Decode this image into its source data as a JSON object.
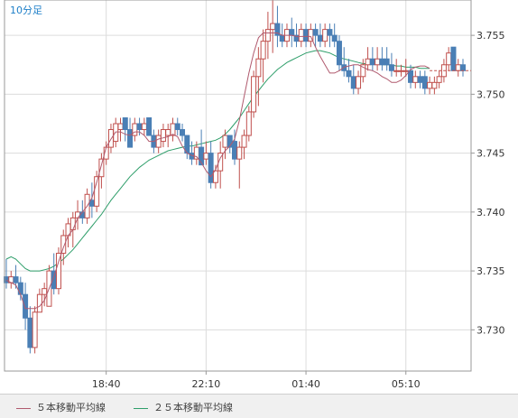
{
  "timeframe": "10分足",
  "legend": [
    {
      "label": "５本移動平均線",
      "color": "#b05a6e"
    },
    {
      "label": "２５本移動平均線",
      "color": "#2e9e6a"
    }
  ],
  "colors": {
    "bull": "#c0504d",
    "bear": "#4a7fb5",
    "grid": "#dcdcdc",
    "axis": "#999999",
    "title": "#1e7fc8",
    "background": "#ffffff"
  },
  "chart_data": {
    "type": "candlestick",
    "title": "10分足",
    "y_range": [
      3.7265,
      3.758
    ],
    "y_ticks": [
      "3.730",
      "3.735",
      "3.740",
      "3.745",
      "3.750",
      "3.755"
    ],
    "x_ticks": [
      "18:40",
      "22:10",
      "01:40",
      "05:10"
    ],
    "grid": true,
    "legend_placement": "bottom",
    "candles": [
      [
        3.7345,
        3.736,
        3.7335,
        3.734
      ],
      [
        3.734,
        3.735,
        3.7335,
        3.7345
      ],
      [
        3.7345,
        3.7355,
        3.7335,
        3.734
      ],
      [
        3.734,
        3.7345,
        3.7325,
        3.733
      ],
      [
        3.733,
        3.734,
        3.73,
        3.731
      ],
      [
        3.731,
        3.732,
        3.728,
        3.7285
      ],
      [
        3.7285,
        3.732,
        3.728,
        3.7315
      ],
      [
        3.7315,
        3.7335,
        3.7315,
        3.733
      ],
      [
        3.733,
        3.734,
        3.732,
        3.7335
      ],
      [
        3.732,
        3.7355,
        3.732,
        3.735
      ],
      [
        3.735,
        3.7365,
        3.733,
        3.7335
      ],
      [
        3.7335,
        3.737,
        3.733,
        3.7365
      ],
      [
        3.7365,
        3.7385,
        3.7355,
        3.738
      ],
      [
        3.738,
        3.7395,
        3.737,
        3.739
      ],
      [
        3.7385,
        3.74,
        3.737,
        3.7395
      ],
      [
        3.7395,
        3.741,
        3.7385,
        3.74
      ],
      [
        3.74,
        3.741,
        3.739,
        3.7395
      ],
      [
        3.7395,
        3.742,
        3.739,
        3.7415
      ],
      [
        3.741,
        3.7425,
        3.7395,
        3.7405
      ],
      [
        3.7405,
        3.7435,
        3.74,
        3.743
      ],
      [
        3.743,
        3.745,
        3.742,
        3.7445
      ],
      [
        3.7445,
        3.746,
        3.744,
        3.7455
      ],
      [
        3.7455,
        3.7475,
        3.745,
        3.747
      ],
      [
        3.746,
        3.748,
        3.7455,
        3.7475
      ],
      [
        3.747,
        3.748,
        3.746,
        3.7475
      ],
      [
        3.748,
        3.748,
        3.746,
        3.747
      ],
      [
        3.747,
        3.748,
        3.7455,
        3.7455
      ],
      [
        3.7465,
        3.748,
        3.746,
        3.7475
      ],
      [
        3.7475,
        3.748,
        3.7465,
        3.747
      ],
      [
        3.747,
        3.748,
        3.7465,
        3.7475
      ],
      [
        3.748,
        3.748,
        3.7465,
        3.7465
      ],
      [
        3.7465,
        3.747,
        3.745,
        3.7455
      ],
      [
        3.7455,
        3.747,
        3.745,
        3.7465
      ],
      [
        3.746,
        3.7475,
        3.7455,
        3.747
      ],
      [
        3.7465,
        3.7475,
        3.7455,
        3.747
      ],
      [
        3.7465,
        3.748,
        3.746,
        3.7475
      ],
      [
        3.7475,
        3.748,
        3.7465,
        3.747
      ],
      [
        3.747,
        3.7475,
        3.746,
        3.7465
      ],
      [
        3.7465,
        3.7465,
        3.7445,
        3.745
      ],
      [
        3.745,
        3.746,
        3.744,
        3.7445
      ],
      [
        3.7445,
        3.746,
        3.744,
        3.7455
      ],
      [
        3.7455,
        3.747,
        3.744,
        3.744
      ],
      [
        3.7445,
        3.746,
        3.744,
        3.745
      ],
      [
        3.745,
        3.746,
        3.742,
        3.7425
      ],
      [
        3.7425,
        3.744,
        3.742,
        3.7435
      ],
      [
        3.7435,
        3.746,
        3.742,
        3.745
      ],
      [
        3.7455,
        3.747,
        3.7445,
        3.7465
      ],
      [
        3.7465,
        3.7465,
        3.745,
        3.7455
      ],
      [
        3.746,
        3.747,
        3.744,
        3.7445
      ],
      [
        3.7445,
        3.746,
        3.742,
        3.7455
      ],
      [
        3.7455,
        3.747,
        3.7445,
        3.7465
      ],
      [
        3.7465,
        3.749,
        3.746,
        3.7485
      ],
      [
        3.7485,
        3.752,
        3.748,
        3.7515
      ],
      [
        3.7515,
        3.754,
        3.749,
        3.753
      ],
      [
        3.753,
        3.7555,
        3.751,
        3.7545
      ],
      [
        3.7545,
        3.757,
        3.753,
        3.7555
      ],
      [
        3.7555,
        3.758,
        3.7535,
        3.756
      ],
      [
        3.756,
        3.7575,
        3.754,
        3.755
      ],
      [
        3.755,
        3.756,
        3.754,
        3.7545
      ],
      [
        3.7545,
        3.756,
        3.754,
        3.7555
      ],
      [
        3.7555,
        3.7565,
        3.754,
        3.755
      ],
      [
        3.755,
        3.756,
        3.754,
        3.7545
      ],
      [
        3.7545,
        3.756,
        3.754,
        3.7555
      ],
      [
        3.7555,
        3.756,
        3.754,
        3.7545
      ],
      [
        3.7545,
        3.756,
        3.754,
        3.7555
      ],
      [
        3.7555,
        3.756,
        3.754,
        3.755
      ],
      [
        3.755,
        3.756,
        3.754,
        3.7545
      ],
      [
        3.7545,
        3.756,
        3.754,
        3.7555
      ],
      [
        3.7555,
        3.756,
        3.754,
        3.755
      ],
      [
        3.755,
        3.756,
        3.754,
        3.7545
      ],
      [
        3.7545,
        3.755,
        3.752,
        3.7525
      ],
      [
        3.7525,
        3.754,
        3.7515,
        3.752
      ],
      [
        3.752,
        3.753,
        3.751,
        3.7515
      ],
      [
        3.7515,
        3.7525,
        3.75,
        3.7505
      ],
      [
        3.7505,
        3.752,
        3.75,
        3.7515
      ],
      [
        3.7515,
        3.753,
        3.751,
        3.7525
      ],
      [
        3.7525,
        3.754,
        3.752,
        3.753
      ],
      [
        3.753,
        3.754,
        3.752,
        3.7525
      ],
      [
        3.7525,
        3.754,
        3.752,
        3.753
      ],
      [
        3.753,
        3.754,
        3.752,
        3.7525
      ],
      [
        3.753,
        3.754,
        3.752,
        3.7525
      ],
      [
        3.7525,
        3.7535,
        3.7515,
        3.752
      ],
      [
        3.752,
        3.753,
        3.7515,
        3.752
      ],
      [
        3.752,
        3.7525,
        3.7515,
        3.752
      ],
      [
        3.752,
        3.753,
        3.7515,
        3.752
      ],
      [
        3.752,
        3.7525,
        3.7505,
        3.751
      ],
      [
        3.751,
        3.752,
        3.7505,
        3.7515
      ],
      [
        3.7515,
        3.752,
        3.7505,
        3.751
      ],
      [
        3.7515,
        3.752,
        3.75,
        3.7505
      ],
      [
        3.7505,
        3.7515,
        3.75,
        3.751
      ],
      [
        3.7505,
        3.7515,
        3.75,
        3.751
      ],
      [
        3.751,
        3.752,
        3.7505,
        3.7515
      ],
      [
        3.7515,
        3.753,
        3.751,
        3.7525
      ],
      [
        3.7525,
        3.754,
        3.752,
        3.7535
      ],
      [
        3.754,
        3.754,
        3.752,
        3.752
      ],
      [
        3.752,
        3.753,
        3.7515,
        3.7525
      ],
      [
        3.7525,
        3.753,
        3.7515,
        3.752
      ]
    ],
    "ma5": [
      3.7342,
      3.734,
      3.7338,
      3.733,
      3.7318,
      3.7318,
      3.7318,
      3.732,
      3.7325,
      3.7335,
      3.7345,
      3.7358,
      3.737,
      3.738,
      3.7385,
      3.7395,
      3.74,
      3.7405,
      3.7412,
      3.7425,
      3.744,
      3.7455,
      3.7462,
      3.7468,
      3.7468,
      3.7466,
      3.7465,
      3.7468,
      3.7468,
      3.7465,
      3.746,
      3.746,
      3.7462,
      3.7463,
      3.7464,
      3.7466,
      3.7464,
      3.7456,
      3.745,
      3.7448,
      3.7447,
      3.7442,
      3.7435,
      3.743,
      3.7436,
      3.7446,
      3.7452,
      3.7456,
      3.7462,
      3.7478,
      3.7498,
      3.7518,
      3.7535,
      3.7548,
      3.7552,
      3.7552,
      3.7552,
      3.7552,
      3.755,
      3.755,
      3.755,
      3.7549,
      3.7549,
      3.7549,
      3.7549,
      3.754,
      3.7532,
      3.7525,
      3.7518,
      3.7518,
      3.752,
      3.7523,
      3.7524,
      3.7525,
      3.7525,
      3.7523,
      3.7521,
      3.752,
      3.7518,
      3.7515,
      3.7513,
      3.751,
      3.751,
      3.7512,
      3.7516,
      3.7521,
      3.7523,
      3.7524,
      3.7524,
      3.7522
    ],
    "ma25": [
      3.736,
      3.7362,
      3.736,
      3.7356,
      3.7352,
      3.735,
      3.735,
      3.735,
      3.7351,
      3.7352,
      3.7354,
      3.7357,
      3.736,
      3.7364,
      3.7368,
      3.7373,
      3.7378,
      3.7383,
      3.7388,
      3.7393,
      3.7398,
      3.7404,
      3.741,
      3.7415,
      3.742,
      3.7425,
      3.743,
      3.7434,
      3.7438,
      3.7441,
      3.7444,
      3.7446,
      3.7448,
      3.745,
      3.7452,
      3.7453,
      3.7454,
      3.7455,
      3.7456,
      3.7456,
      3.7457,
      3.7458,
      3.7459,
      3.746,
      3.7461,
      3.7463,
      3.7466,
      3.747,
      3.7475,
      3.748,
      3.7486,
      3.7492,
      3.7498,
      3.7503,
      3.7508,
      3.7513,
      3.7517,
      3.7521,
      3.7524,
      3.7527,
      3.7529,
      3.7531,
      3.7533,
      3.7535,
      3.7536,
      3.7537,
      3.7537,
      3.7536,
      3.7535,
      3.7533,
      3.7531,
      3.753,
      3.7529,
      3.7528,
      3.7527,
      3.7526,
      3.7526,
      3.7526,
      3.7526,
      3.7525,
      3.7525,
      3.7525,
      3.7524,
      3.7524,
      3.7523,
      3.7523,
      3.7523,
      3.7522,
      3.7522,
      3.7522
    ],
    "last_price": 3.752
  }
}
